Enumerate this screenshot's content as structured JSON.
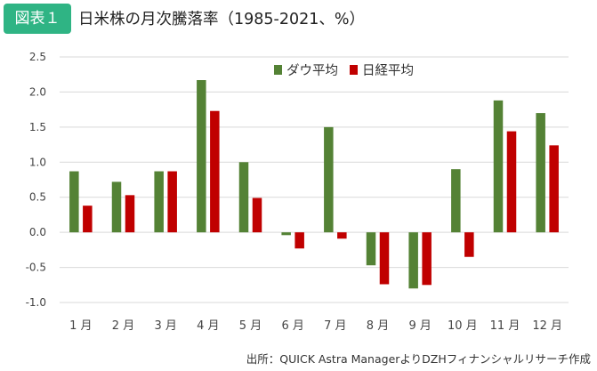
{
  "badge": "図表１",
  "title": "日米株の月次騰落率（1985-2021、%）",
  "source": "出所：QUICK Astra ManagerよりDZHフィナンシャルリサーチ作成",
  "colors": {
    "badge": "#2fb484",
    "dow": "#548235",
    "nikkei": "#c00000"
  },
  "chart_data": {
    "type": "bar",
    "categories": [
      "1月",
      "2月",
      "3月",
      "4月",
      "5月",
      "6月",
      "7月",
      "8月",
      "9月",
      "10月",
      "11月",
      "12月"
    ],
    "category_display": [
      "1 月",
      "2 月",
      "3 月",
      "4 月",
      "5 月",
      "6 月",
      "7 月",
      "8 月",
      "9 月",
      "10 月",
      "11 月",
      "12 月"
    ],
    "series": [
      {
        "name": "ダウ平均",
        "color": "#548235",
        "values": [
          0.87,
          0.72,
          0.87,
          2.17,
          1.0,
          -0.04,
          1.5,
          -0.47,
          -0.8,
          0.9,
          1.88,
          1.7
        ]
      },
      {
        "name": "日経平均",
        "color": "#c00000",
        "values": [
          0.38,
          0.53,
          0.87,
          1.73,
          0.49,
          -0.23,
          -0.09,
          -0.74,
          -0.75,
          -0.35,
          1.44,
          1.24
        ]
      }
    ],
    "ylim": [
      -1.0,
      2.5
    ],
    "yticks": [
      "2.5",
      "2.0",
      "1.5",
      "1.0",
      "0.5",
      "0.0",
      "-0.5",
      "-1.0"
    ],
    "grid": true,
    "legend_position": "top-center"
  }
}
